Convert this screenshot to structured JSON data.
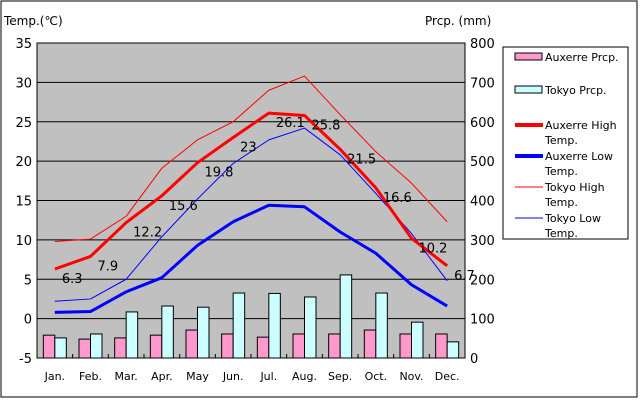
{
  "chart_data": {
    "type": "bar+line",
    "categories": [
      "Jan.",
      "Feb.",
      "Mar.",
      "Apr.",
      "May",
      "Jun.",
      "Jul.",
      "Aug.",
      "Sep.",
      "Oct.",
      "Nov.",
      "Dec."
    ],
    "ylabel": "Temp.(℃)",
    "ylabel_right": "Prcp. (mm)",
    "ylim": [
      -5,
      35
    ],
    "yticks": [
      -5,
      0,
      5,
      10,
      15,
      20,
      25,
      30,
      35
    ],
    "ylim_right": [
      0,
      800
    ],
    "yticks_right": [
      0,
      100,
      200,
      300,
      400,
      500,
      600,
      700,
      800
    ],
    "grid": true,
    "legend_placement": "right",
    "colors": {
      "plot_bg": "#c0c0c0",
      "auxerre_prcp": "#ff99cc",
      "tokyo_prcp": "#ccffff",
      "auxerre_high": "#ff0000",
      "auxerre_low": "#0000ff",
      "tokyo_high": "#ff0000",
      "tokyo_low": "#0000ff"
    },
    "bar_series": [
      {
        "name": "Auxerre Prcp.",
        "axis": "right",
        "values": [
          58,
          48,
          51,
          58,
          71,
          61,
          53,
          61,
          61,
          71,
          61,
          61
        ]
      },
      {
        "name": "Tokyo Prcp.",
        "axis": "right",
        "values": [
          51,
          61,
          117,
          132,
          129,
          165,
          164,
          155,
          211,
          165,
          91,
          41
        ]
      }
    ],
    "line_series": [
      {
        "name": "Auxerre High Temp.",
        "key": "auxerre_high",
        "width": 3,
        "labels": true,
        "values": [
          6.3,
          7.9,
          12.2,
          15.6,
          19.8,
          23,
          26.1,
          25.8,
          21.5,
          16.6,
          10.2,
          6.7
        ]
      },
      {
        "name": "Auxerre Low Temp.",
        "key": "auxerre_low",
        "width": 3,
        "labels": false,
        "values": [
          0.8,
          0.9,
          3.4,
          5.2,
          9.3,
          12.3,
          14.4,
          14.2,
          11.0,
          8.3,
          4.3,
          1.6
        ]
      },
      {
        "name": "Tokyo High Temp.",
        "key": "tokyo_high",
        "width": 1,
        "labels": false,
        "values": [
          9.8,
          10.1,
          13.0,
          19.1,
          22.7,
          25.0,
          29.0,
          30.8,
          25.9,
          21.2,
          17.2,
          12.3
        ]
      },
      {
        "name": "Tokyo Low Temp.",
        "key": "tokyo_low",
        "width": 1,
        "labels": false,
        "values": [
          2.2,
          2.5,
          5.0,
          10.4,
          15.2,
          19.7,
          22.7,
          24.2,
          20.8,
          15.9,
          10.8,
          4.8
        ]
      }
    ],
    "legend": [
      {
        "label": "Auxerre Prcp.",
        "kind": "bar",
        "color": "#ff99cc"
      },
      {
        "label": "Tokyo Prcp.",
        "kind": "bar",
        "color": "#ccffff"
      },
      {
        "label": "Auxerre High Temp.",
        "kind": "line",
        "color": "#ff0000",
        "width": 4
      },
      {
        "label": "Auxerre Low Temp.",
        "kind": "line",
        "color": "#0000ff",
        "width": 4
      },
      {
        "label": "Tokyo High Temp.",
        "kind": "line",
        "color": "#ff0000",
        "width": 1
      },
      {
        "label": "Tokyo Low Temp.",
        "kind": "line",
        "color": "#0000ff",
        "width": 1
      }
    ]
  }
}
